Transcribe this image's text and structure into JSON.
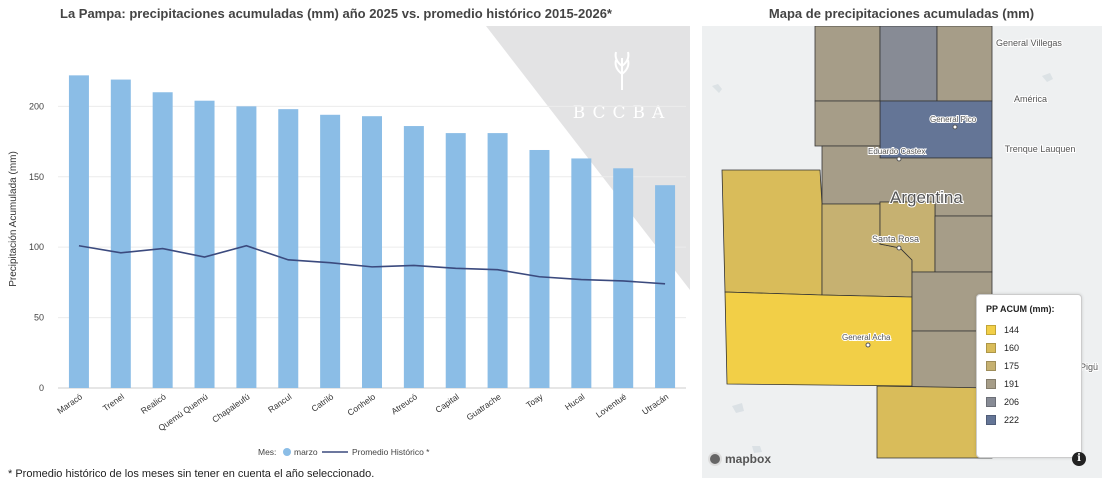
{
  "chart_title": "La Pampa: precipitaciones acumuladas (mm) año 2025 vs. promedio histórico 2015-2026*",
  "footnote": "* Promedio histórico de los meses sin tener en cuenta el año seleccionado.",
  "watermark": "BCCBA",
  "chart_data": {
    "type": "bar",
    "categories": [
      "Maracó",
      "Trenel",
      "Realicó",
      "Quemú Quemú",
      "Chapaleufú",
      "Rancul",
      "Catriló",
      "Conhelo",
      "Atreucó",
      "Capital",
      "Guatrache",
      "Toay",
      "Hucal",
      "Loventué",
      "Utracán"
    ],
    "series": [
      {
        "name": "marzo",
        "type": "bar",
        "color": "#8bbde6",
        "values": [
          222,
          219,
          210,
          204,
          200,
          198,
          194,
          193,
          186,
          181,
          181,
          169,
          163,
          156,
          144
        ]
      },
      {
        "name": "Promedio Histórico *",
        "type": "line",
        "color": "#3b4a7e",
        "values": [
          101,
          96,
          99,
          93,
          101,
          91,
          89,
          86,
          87,
          85,
          84,
          79,
          77,
          76,
          74
        ]
      }
    ],
    "ylabel": "Precipitación Acumulada (mm)",
    "xlabel": "",
    "ylim": [
      0,
      240
    ],
    "yticks": [
      0,
      50,
      100,
      150,
      200
    ],
    "legend_title": "Mes:",
    "legend_position": "bottom-center"
  },
  "map": {
    "title": "Mapa de precipitaciones acumuladas (mm)",
    "legend_title": "PP ACUM (mm):",
    "legend": [
      {
        "label": "144",
        "color": "#f2cf47"
      },
      {
        "label": "160",
        "color": "#d9bc5a"
      },
      {
        "label": "175",
        "color": "#c6b171"
      },
      {
        "label": "191",
        "color": "#a69d88"
      },
      {
        "label": "206",
        "color": "#878b95"
      },
      {
        "label": "222",
        "color": "#647596"
      }
    ],
    "places": [
      "General Villegas",
      "América",
      "Trenque Lauquen",
      "General Pico",
      "Eduardo Castex",
      "Argentina",
      "Santa Rosa",
      "General Acha",
      "Pigü"
    ],
    "attribution": "mapbox",
    "info": "i"
  }
}
